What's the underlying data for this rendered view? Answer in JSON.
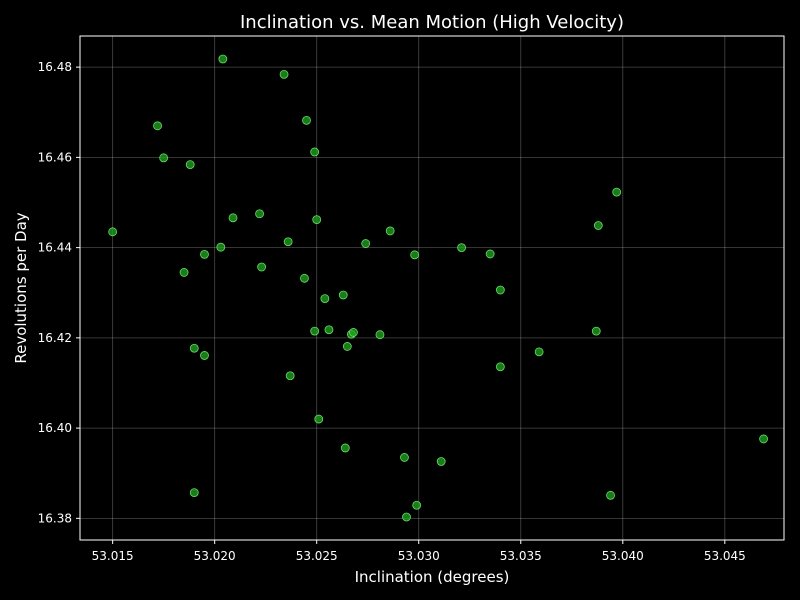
{
  "chart_data": {
    "type": "scatter",
    "title": "Inclination vs. Mean Motion (High Velocity)",
    "xlabel": "Inclination (degrees)",
    "ylabel": "Revolutions per Day",
    "xlim": [
      53.0134,
      53.0479
    ],
    "ylim": [
      16.3752,
      16.4869
    ],
    "xticks": [
      53.015,
      53.02,
      53.025,
      53.03,
      53.035,
      53.04,
      53.045
    ],
    "xtick_labels": [
      "53.015",
      "53.020",
      "53.025",
      "53.030",
      "53.035",
      "53.040",
      "53.045"
    ],
    "yticks": [
      16.38,
      16.4,
      16.42,
      16.44,
      16.46,
      16.48
    ],
    "ytick_labels": [
      "16.38",
      "16.40",
      "16.42",
      "16.44",
      "16.46",
      "16.48"
    ],
    "grid": true,
    "point_color": "#22a822",
    "point_edge_color": "#66dd66",
    "background_color": "#000000",
    "points": [
      [
        53.015,
        16.4435
      ],
      [
        53.0172,
        16.467
      ],
      [
        53.0175,
        16.4599
      ],
      [
        53.0185,
        16.4345
      ],
      [
        53.0188,
        16.4584
      ],
      [
        53.019,
        16.4177
      ],
      [
        53.019,
        16.3857
      ],
      [
        53.0195,
        16.4385
      ],
      [
        53.0195,
        16.4161
      ],
      [
        53.0203,
        16.4401
      ],
      [
        53.0204,
        16.4818
      ],
      [
        53.0209,
        16.4466
      ],
      [
        53.0222,
        16.4475
      ],
      [
        53.0223,
        16.4357
      ],
      [
        53.0234,
        16.4784
      ],
      [
        53.0236,
        16.4413
      ],
      [
        53.0237,
        16.4116
      ],
      [
        53.0244,
        16.4332
      ],
      [
        53.0245,
        16.4682
      ],
      [
        53.0249,
        16.4612
      ],
      [
        53.0249,
        16.4215
      ],
      [
        53.025,
        16.4462
      ],
      [
        53.0251,
        16.402
      ],
      [
        53.0254,
        16.4287
      ],
      [
        53.0256,
        16.4218
      ],
      [
        53.0263,
        16.4295
      ],
      [
        53.0264,
        16.3956
      ],
      [
        53.0265,
        16.4181
      ],
      [
        53.0267,
        16.4208
      ],
      [
        53.0268,
        16.4212
      ],
      [
        53.0274,
        16.4409
      ],
      [
        53.0281,
        16.4207
      ],
      [
        53.0286,
        16.4437
      ],
      [
        53.0293,
        16.3935
      ],
      [
        53.0294,
        16.3803
      ],
      [
        53.0298,
        16.4384
      ],
      [
        53.0299,
        16.3829
      ],
      [
        53.0311,
        16.3926
      ],
      [
        53.0321,
        16.44
      ],
      [
        53.0335,
        16.4386
      ],
      [
        53.034,
        16.4306
      ],
      [
        53.034,
        16.4136
      ],
      [
        53.0359,
        16.4169
      ],
      [
        53.0387,
        16.4215
      ],
      [
        53.0388,
        16.4449
      ],
      [
        53.0394,
        16.3851
      ],
      [
        53.0397,
        16.4523
      ],
      [
        53.0469,
        16.3976
      ]
    ]
  }
}
